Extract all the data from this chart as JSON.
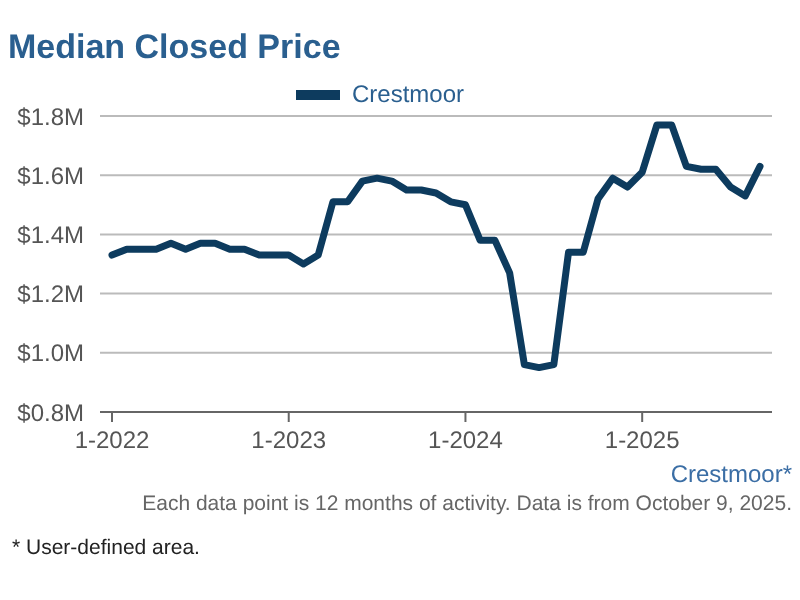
{
  "chart_data": {
    "type": "line",
    "title": "Median Closed Price",
    "categories": [
      "1-2022",
      null,
      null,
      null,
      null,
      null,
      null,
      null,
      null,
      null,
      null,
      null,
      "1-2023",
      null,
      null,
      null,
      null,
      null,
      null,
      null,
      null,
      null,
      null,
      null,
      "1-2024",
      null,
      null,
      null,
      null,
      null,
      null,
      null,
      null,
      null,
      null,
      null,
      "1-2025",
      null,
      null,
      null,
      null,
      null,
      null,
      null,
      null
    ],
    "series": [
      {
        "name": "Crestmoor",
        "color": "#0d3b5e",
        "values": [
          1.33,
          1.35,
          1.35,
          1.35,
          1.37,
          1.35,
          1.37,
          1.37,
          1.35,
          1.35,
          1.33,
          1.33,
          1.33,
          1.3,
          1.33,
          1.51,
          1.51,
          1.58,
          1.59,
          1.58,
          1.55,
          1.55,
          1.54,
          1.51,
          1.5,
          1.38,
          1.38,
          1.27,
          0.96,
          0.95,
          0.96,
          1.34,
          1.34,
          1.52,
          1.59,
          1.56,
          1.61,
          1.77,
          1.77,
          1.63,
          1.62,
          1.62,
          1.56,
          1.53,
          1.63
        ]
      }
    ],
    "ylim": [
      0.8,
      1.8
    ],
    "yticks": [
      {
        "value": 0.8,
        "label": "$0.8M"
      },
      {
        "value": 1.0,
        "label": "$1.0M"
      },
      {
        "value": 1.2,
        "label": "$1.2M"
      },
      {
        "value": 1.4,
        "label": "$1.4M"
      },
      {
        "value": 1.6,
        "label": "$1.6M"
      },
      {
        "value": 1.8,
        "label": "$1.8M"
      }
    ],
    "grid": "y",
    "legend": "top",
    "marker": "none",
    "line_style": "solid",
    "annotations": [
      "Crestmoor*",
      "Each data point is 12 months of activity. Data is from October 9, 2025.",
      "* User-defined area."
    ]
  }
}
